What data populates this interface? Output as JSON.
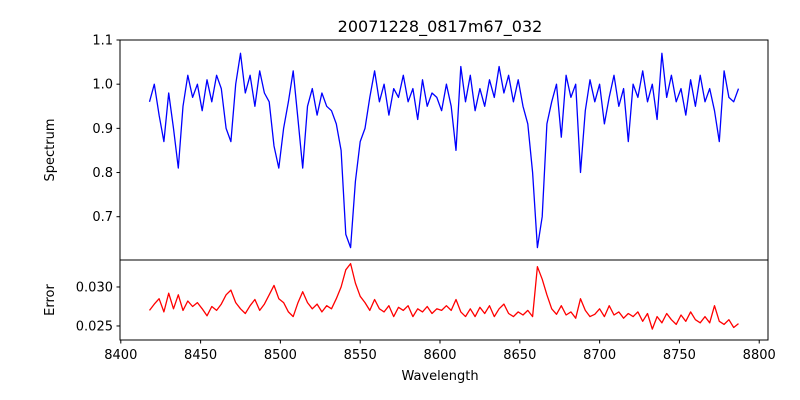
{
  "chart_data": [
    {
      "type": "line",
      "title": "20071228_0817m67_032",
      "xlabel": "",
      "ylabel": "Spectrum",
      "xlim": [
        8399.5,
        8805.5
      ],
      "ylim": [
        0.602,
        1.1
      ],
      "yticks": [
        "0.7",
        "0.8",
        "0.9",
        "1.0",
        "1.1"
      ],
      "ytick_values": [
        0.7,
        0.8,
        0.9,
        1.0,
        1.1
      ],
      "color": "#0000ff",
      "x_start": 8418,
      "x_step": 3,
      "values": [
        0.96,
        1.0,
        0.93,
        0.87,
        0.98,
        0.9,
        0.81,
        0.95,
        1.02,
        0.97,
        1.0,
        0.94,
        1.01,
        0.96,
        1.02,
        0.99,
        0.9,
        0.87,
        1.0,
        1.07,
        0.98,
        1.02,
        0.95,
        1.03,
        0.98,
        0.96,
        0.86,
        0.81,
        0.9,
        0.96,
        1.03,
        0.92,
        0.81,
        0.95,
        0.99,
        0.93,
        0.98,
        0.95,
        0.94,
        0.91,
        0.85,
        0.66,
        0.63,
        0.78,
        0.87,
        0.9,
        0.97,
        1.03,
        0.96,
        1.0,
        0.93,
        0.99,
        0.97,
        1.02,
        0.96,
        0.99,
        0.92,
        1.01,
        0.95,
        0.98,
        0.97,
        0.94,
        1.0,
        0.95,
        0.85,
        1.04,
        0.96,
        1.02,
        0.94,
        0.99,
        0.95,
        1.01,
        0.97,
        1.04,
        0.98,
        1.02,
        0.96,
        1.01,
        0.95,
        0.91,
        0.8,
        0.63,
        0.7,
        0.91,
        0.96,
        1.0,
        0.88,
        1.02,
        0.97,
        1.0,
        0.8,
        0.94,
        1.01,
        0.96,
        1.0,
        0.91,
        0.97,
        1.02,
        0.95,
        0.99,
        0.87,
        1.0,
        0.97,
        1.03,
        0.96,
        1.0,
        0.92,
        1.07,
        0.97,
        1.02,
        0.96,
        0.99,
        0.93,
        1.01,
        0.95,
        1.02,
        0.96,
        0.99,
        0.94,
        0.87,
        1.03,
        0.97,
        0.96,
        0.99
      ]
    },
    {
      "type": "line",
      "title": "",
      "xlabel": "Wavelength",
      "ylabel": "Error",
      "xlim": [
        8399.5,
        8805.5
      ],
      "ylim": [
        0.0232,
        0.03346
      ],
      "xticks": [
        "8400",
        "8450",
        "8500",
        "8550",
        "8600",
        "8650",
        "8700",
        "8750",
        "8800"
      ],
      "xtick_values": [
        8400,
        8450,
        8500,
        8550,
        8600,
        8650,
        8700,
        8750,
        8800
      ],
      "yticks": [
        "0.025",
        "0.030"
      ],
      "ytick_values": [
        0.025,
        0.03
      ],
      "color": "#ff0000",
      "x_start": 8418,
      "x_step": 3,
      "values": [
        0.027,
        0.0278,
        0.0285,
        0.0268,
        0.0292,
        0.0272,
        0.029,
        0.027,
        0.0282,
        0.0275,
        0.028,
        0.0272,
        0.0263,
        0.0275,
        0.027,
        0.0278,
        0.029,
        0.0296,
        0.028,
        0.0272,
        0.0266,
        0.0276,
        0.0284,
        0.027,
        0.0278,
        0.029,
        0.0302,
        0.0285,
        0.028,
        0.0268,
        0.0262,
        0.028,
        0.0294,
        0.028,
        0.0272,
        0.0278,
        0.0268,
        0.0276,
        0.0272,
        0.0285,
        0.03,
        0.0322,
        0.033,
        0.0305,
        0.0288,
        0.028,
        0.027,
        0.0284,
        0.0272,
        0.0268,
        0.0276,
        0.0262,
        0.0274,
        0.027,
        0.0276,
        0.0262,
        0.0272,
        0.0268,
        0.0275,
        0.0266,
        0.0272,
        0.027,
        0.0276,
        0.027,
        0.0284,
        0.0268,
        0.0262,
        0.0272,
        0.0262,
        0.0274,
        0.0266,
        0.0276,
        0.0262,
        0.0272,
        0.0278,
        0.0266,
        0.0262,
        0.0268,
        0.0264,
        0.027,
        0.0262,
        0.0326,
        0.031,
        0.029,
        0.0272,
        0.0265,
        0.0276,
        0.0264,
        0.0268,
        0.026,
        0.0285,
        0.027,
        0.0262,
        0.0265,
        0.0272,
        0.0262,
        0.0276,
        0.0264,
        0.0268,
        0.026,
        0.0266,
        0.0262,
        0.0268,
        0.0256,
        0.0266,
        0.0246,
        0.0262,
        0.0254,
        0.0266,
        0.0258,
        0.0252,
        0.0264,
        0.0256,
        0.0268,
        0.0258,
        0.0254,
        0.0262,
        0.0254,
        0.0276,
        0.0256,
        0.0252,
        0.0258,
        0.0248,
        0.0253
      ]
    }
  ]
}
